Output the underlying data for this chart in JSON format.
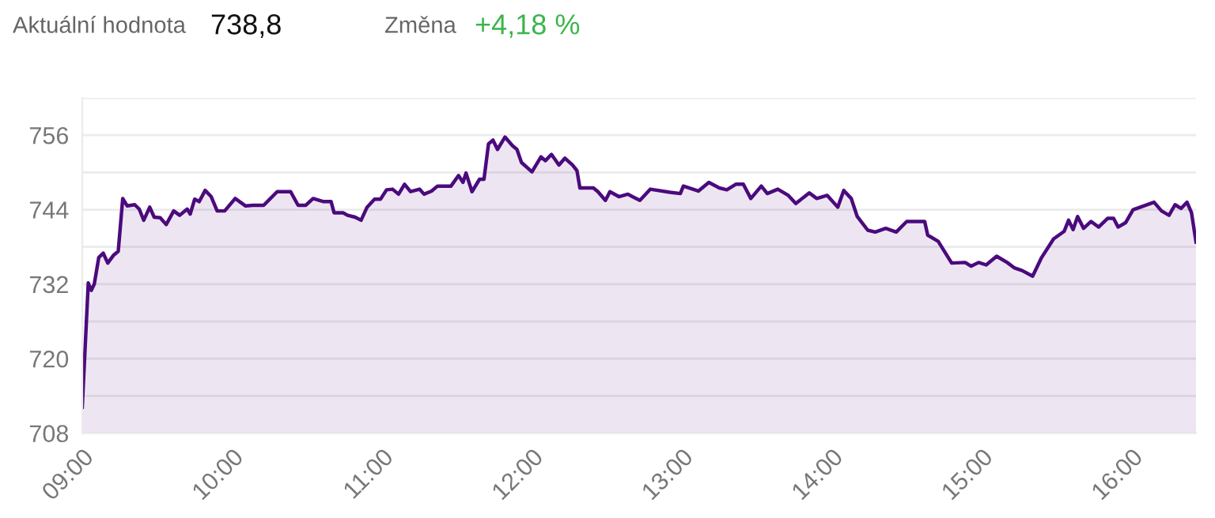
{
  "chart_data": {
    "type": "area",
    "annotations": [
      "Aktuální hodnota",
      "738,8",
      "Změna",
      "+4,18 %"
    ],
    "x": [
      9.0,
      9.04,
      9.06,
      9.08,
      9.11,
      9.14,
      9.17,
      9.21,
      9.24,
      9.27,
      9.3,
      9.35,
      9.38,
      9.41,
      9.45,
      9.48,
      9.52,
      9.56,
      9.61,
      9.65,
      9.7,
      9.72,
      9.75,
      9.78,
      9.82,
      9.86,
      9.9,
      9.95,
      10.02,
      10.09,
      10.14,
      10.21,
      10.3,
      10.39,
      10.44,
      10.49,
      10.54,
      10.61,
      10.66,
      10.68,
      10.74,
      10.77,
      10.82,
      10.86,
      10.9,
      10.95,
      10.99,
      11.03,
      11.07,
      11.11,
      11.15,
      11.19,
      11.25,
      11.28,
      11.33,
      11.37,
      11.46,
      11.51,
      11.54,
      11.56,
      11.6,
      11.65,
      11.68,
      11.71,
      11.74,
      11.77,
      11.82,
      11.87,
      11.9,
      11.93,
      12.0,
      12.06,
      12.09,
      12.13,
      12.18,
      12.22,
      12.27,
      12.3,
      12.32,
      12.41,
      12.44,
      12.49,
      12.52,
      12.58,
      12.64,
      12.67,
      12.72,
      12.79,
      12.92,
      12.99,
      13.01,
      13.11,
      13.18,
      13.25,
      13.3,
      13.36,
      13.41,
      13.46,
      13.53,
      13.57,
      13.64,
      13.71,
      13.76,
      13.85,
      13.9,
      13.97,
      14.04,
      14.08,
      14.13,
      14.17,
      14.24,
      14.29,
      14.36,
      14.43,
      14.5,
      14.62,
      14.64,
      14.71,
      14.8,
      14.89,
      14.93,
      14.98,
      15.03,
      15.1,
      15.17,
      15.22,
      15.27,
      15.34,
      15.4,
      15.48,
      15.55,
      15.58,
      15.61,
      15.64,
      15.68,
      15.73,
      15.78,
      15.84,
      15.88,
      15.91,
      15.96,
      16.01,
      16.08,
      16.15,
      16.2,
      16.25,
      16.29,
      16.33,
      16.37,
      16.4,
      16.43
    ],
    "series": [
      {
        "color": "#4b0a7d",
        "values": [
          712.2,
          732.2,
          731.0,
          732.0,
          736.3,
          737.0,
          735.4,
          736.7,
          737.3,
          745.8,
          744.6,
          744.8,
          744.1,
          742.3,
          744.4,
          742.8,
          742.7,
          741.6,
          743.8,
          743.1,
          744.1,
          743.3,
          745.7,
          745.3,
          747.1,
          746.1,
          743.8,
          743.8,
          745.8,
          744.6,
          744.7,
          744.7,
          746.9,
          746.9,
          744.7,
          744.7,
          745.8,
          745.3,
          745.3,
          743.5,
          743.5,
          743.1,
          742.8,
          742.3,
          744.4,
          745.7,
          745.7,
          747.2,
          747.3,
          746.5,
          748.1,
          746.9,
          747.3,
          746.5,
          747.0,
          747.8,
          747.8,
          749.5,
          748.4,
          749.9,
          746.9,
          748.9,
          748.9,
          754.6,
          755.2,
          753.7,
          755.7,
          754.3,
          753.7,
          751.6,
          750.1,
          752.5,
          751.9,
          752.9,
          751.2,
          752.3,
          751.2,
          750.3,
          747.5,
          747.5,
          746.9,
          745.5,
          746.9,
          746.1,
          746.5,
          746.1,
          745.5,
          747.3,
          746.8,
          746.6,
          747.8,
          747.0,
          748.4,
          747.5,
          747.2,
          748.1,
          748.1,
          745.8,
          747.8,
          746.6,
          747.3,
          746.3,
          745.0,
          746.7,
          745.8,
          746.3,
          744.4,
          747.1,
          745.8,
          742.9,
          740.7,
          740.4,
          741.0,
          740.4,
          742.1,
          742.1,
          739.9,
          738.9,
          735.4,
          735.5,
          734.9,
          735.5,
          735.1,
          736.5,
          735.5,
          734.6,
          734.2,
          733.3,
          736.3,
          739.3,
          740.5,
          742.3,
          740.8,
          742.9,
          741.0,
          742.1,
          741.2,
          742.6,
          742.6,
          741.2,
          741.9,
          744.0,
          744.6,
          745.2,
          743.8,
          743.1,
          744.8,
          744.2,
          745.2,
          743.5,
          738.8
        ]
      }
    ],
    "xlim": [
      9,
      16.43
    ],
    "xticks": [
      {
        "value": 9,
        "label": "09:00"
      },
      {
        "value": 10,
        "label": "10:00"
      },
      {
        "value": 11,
        "label": "11:00"
      },
      {
        "value": 12,
        "label": "12:00"
      },
      {
        "value": 13,
        "label": "13:00"
      },
      {
        "value": 14,
        "label": "14:00"
      },
      {
        "value": 15,
        "label": "15:00"
      },
      {
        "value": 16,
        "label": "16:00"
      }
    ],
    "ylim": [
      708,
      762
    ],
    "yticks": [
      708,
      {
        "value": 714,
        "label": null
      },
      720,
      {
        "value": 726,
        "label": null
      },
      732,
      {
        "value": 738,
        "label": null
      },
      744,
      {
        "value": 750,
        "label": null
      },
      756,
      {
        "value": 762,
        "label": null
      }
    ],
    "grid": "y"
  }
}
